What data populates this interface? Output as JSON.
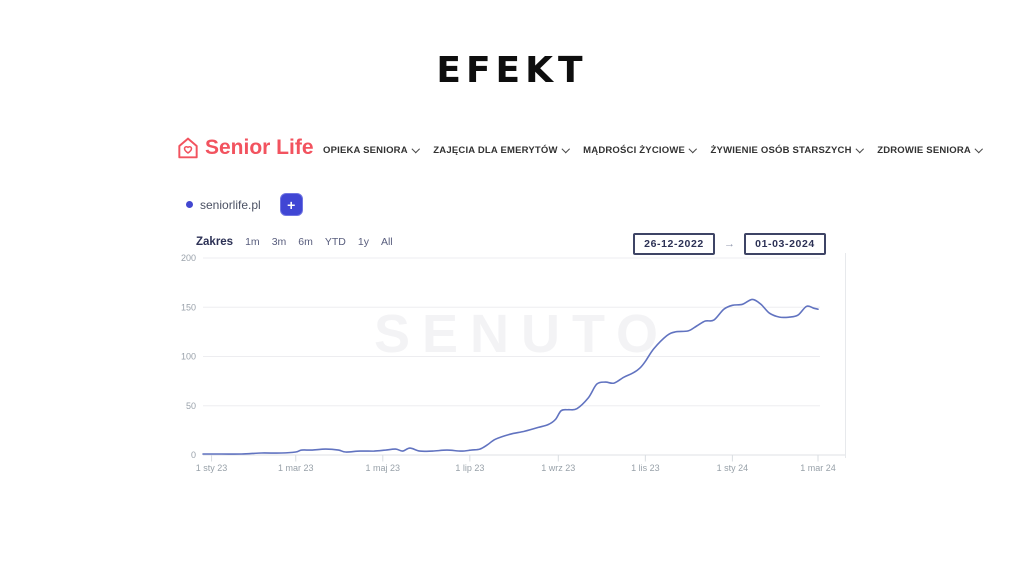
{
  "page": {
    "title": "EFEKT",
    "background": "#ffffff"
  },
  "site_header": {
    "logo": {
      "text": "Senior Life",
      "color": "#f2535f",
      "icon": "house-heart-icon"
    },
    "nav": [
      {
        "label": "OPIEKA SENIORA"
      },
      {
        "label": "ZAJĘCIA DLA EMERYTÓW"
      },
      {
        "label": "MĄDROŚCI ŻYCIOWE"
      },
      {
        "label": "ŻYWIENIE OSÓB STARSZYCH"
      },
      {
        "label": "ZDROWIE SENIORA"
      }
    ]
  },
  "chart_panel": {
    "series_label": "seniorlife.pl",
    "series_dot_color": "#4247d0",
    "add_button_label": "+",
    "range": {
      "label": "Zakres",
      "options": [
        "1m",
        "3m",
        "6m",
        "YTD",
        "1y",
        "All"
      ]
    },
    "date_from": "26-12-2022",
    "date_to": "01-03-2024",
    "arrow": "→",
    "watermark": "SENUTO"
  },
  "chart_data": {
    "type": "line",
    "title": "",
    "series_name": "seniorlife.pl",
    "line_color": "#6173c0",
    "grid": "horizontal",
    "ylim": [
      0,
      200
    ],
    "y_ticks": [
      0,
      50,
      100,
      150,
      200
    ],
    "x_range": [
      "2022-12-26",
      "2024-03-01"
    ],
    "x_tick_labels": [
      "1 sty 23",
      "1 mar 23",
      "1 maj 23",
      "1 lip 23",
      "1 wrz 23",
      "1 lis 23",
      "1 sty 24",
      "1 mar 24"
    ],
    "x_tick_dates": [
      "2023-01-01",
      "2023-03-01",
      "2023-05-01",
      "2023-07-01",
      "2023-09-01",
      "2023-11-01",
      "2024-01-01",
      "2024-03-01"
    ],
    "points": [
      [
        "2022-12-26",
        1
      ],
      [
        "2023-01-08",
        1
      ],
      [
        "2023-01-22",
        1
      ],
      [
        "2023-02-05",
        2
      ],
      [
        "2023-02-19",
        2
      ],
      [
        "2023-03-01",
        3
      ],
      [
        "2023-03-05",
        5
      ],
      [
        "2023-03-12",
        5
      ],
      [
        "2023-03-22",
        6
      ],
      [
        "2023-03-31",
        5
      ],
      [
        "2023-04-05",
        3
      ],
      [
        "2023-04-15",
        4
      ],
      [
        "2023-04-25",
        4
      ],
      [
        "2023-05-03",
        5
      ],
      [
        "2023-05-10",
        6
      ],
      [
        "2023-05-15",
        4
      ],
      [
        "2023-05-20",
        7
      ],
      [
        "2023-05-27",
        4
      ],
      [
        "2023-06-05",
        4
      ],
      [
        "2023-06-15",
        5
      ],
      [
        "2023-06-25",
        4
      ],
      [
        "2023-07-02",
        5
      ],
      [
        "2023-07-08",
        6
      ],
      [
        "2023-07-13",
        10
      ],
      [
        "2023-07-19",
        16
      ],
      [
        "2023-07-29",
        21
      ],
      [
        "2023-08-08",
        24
      ],
      [
        "2023-08-18",
        28
      ],
      [
        "2023-08-25",
        31
      ],
      [
        "2023-08-30",
        36
      ],
      [
        "2023-09-03",
        45
      ],
      [
        "2023-09-08",
        46
      ],
      [
        "2023-09-14",
        47
      ],
      [
        "2023-09-22",
        58
      ],
      [
        "2023-09-28",
        72
      ],
      [
        "2023-10-04",
        74
      ],
      [
        "2023-10-10",
        73
      ],
      [
        "2023-10-17",
        79
      ],
      [
        "2023-10-23",
        83
      ],
      [
        "2023-10-28",
        88
      ],
      [
        "2023-11-01",
        95
      ],
      [
        "2023-11-07",
        108
      ],
      [
        "2023-11-16",
        121
      ],
      [
        "2023-11-22",
        125
      ],
      [
        "2023-12-01",
        126
      ],
      [
        "2023-12-07",
        131
      ],
      [
        "2023-12-13",
        136
      ],
      [
        "2023-12-19",
        137
      ],
      [
        "2023-12-26",
        148
      ],
      [
        "2024-01-01",
        152
      ],
      [
        "2024-01-08",
        153
      ],
      [
        "2024-01-15",
        158
      ],
      [
        "2024-01-21",
        153
      ],
      [
        "2024-01-27",
        144
      ],
      [
        "2024-02-03",
        140
      ],
      [
        "2024-02-10",
        140
      ],
      [
        "2024-02-16",
        142
      ],
      [
        "2024-02-22",
        151
      ],
      [
        "2024-02-27",
        149
      ],
      [
        "2024-03-01",
        148
      ]
    ]
  }
}
